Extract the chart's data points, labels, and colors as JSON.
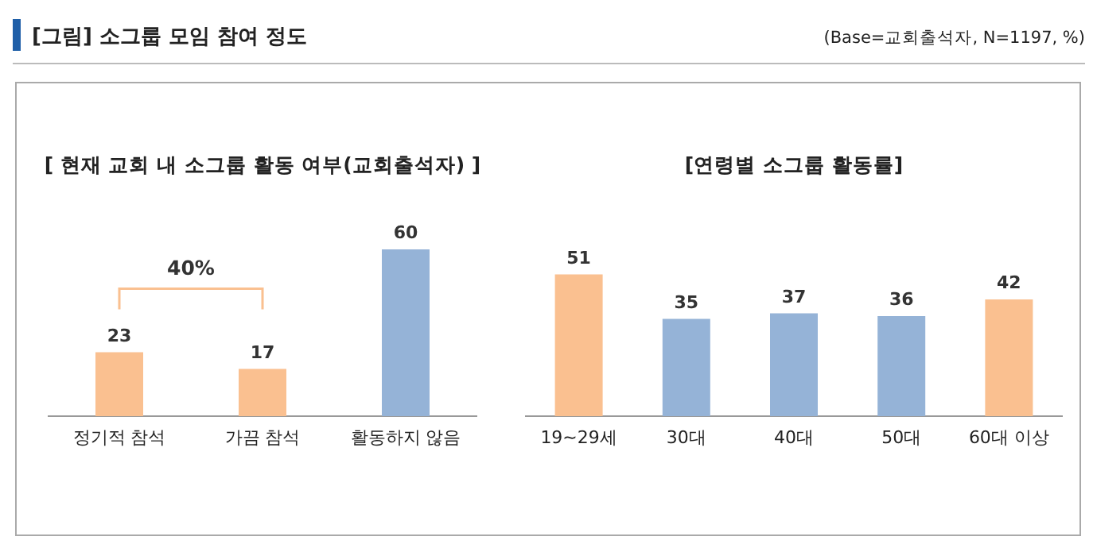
{
  "chart_data": [
    {
      "type": "other",
      "title": "[그림] 소그룹 모임 참여 정도",
      "annotations": [
        "(Base=교회출석자, N=1197, %)"
      ]
    },
    {
      "type": "bar",
      "title": "[ 현재 교회 내 소그룹 활동 여부(교회출석자) ]",
      "categories": [
        "정기적 참석",
        "가끔 참석",
        "활동하지 않음"
      ],
      "values": [
        23,
        17,
        60
      ],
      "colors": [
        "#fac090",
        "#fac090",
        "#95b3d7"
      ],
      "data_labels": true,
      "annotations": [
        "40%"
      ]
    },
    {
      "type": "bar",
      "title": "[연령별 소그룹 활동률]",
      "categories": [
        "19~29세",
        "30대",
        "40대",
        "50대",
        "60대 이상"
      ],
      "values": [
        51,
        35,
        37,
        36,
        42
      ],
      "colors": [
        "#fac090",
        "#95b3d7",
        "#95b3d7",
        "#95b3d7",
        "#fac090"
      ],
      "data_labels": true
    }
  ]
}
